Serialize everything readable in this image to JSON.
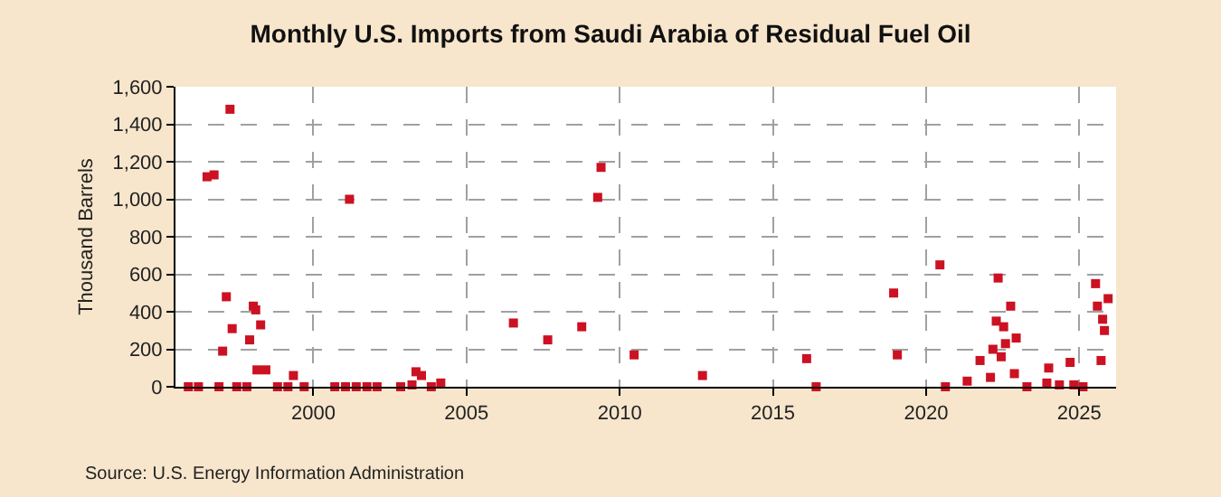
{
  "chart_data": {
    "type": "scatter",
    "title": "Monthly U.S. Imports from Saudi Arabia of Residual Fuel Oil",
    "ylabel": "Thousand Barrels",
    "annotations": [
      "Source: U.S. Energy Information Administration"
    ],
    "marker": "square",
    "grid": true,
    "xlim": [
      1995.5,
      2026.2
    ],
    "xticks": [
      2000,
      2005,
      2010,
      2015,
      2020,
      2025
    ],
    "ylim": [
      0,
      1600
    ],
    "yticks": [
      0,
      200,
      400,
      600,
      800,
      {
        "value": 1000,
        "label": "1,000"
      },
      {
        "value": 1200,
        "label": "1,200"
      },
      {
        "value": 1400,
        "label": "1,400"
      },
      {
        "value": 1600,
        "label": "1,600"
      }
    ],
    "series": [
      {
        "color": "#cc1122",
        "x": [
          1995.92,
          1996.25,
          1996.53,
          1996.76,
          1996.92,
          1997.04,
          1997.16,
          1997.28,
          1997.35,
          1997.5,
          1997.83,
          1997.92,
          1998.04,
          1998.12,
          1998.16,
          1998.28,
          1998.45,
          1998.83,
          1999.17,
          1999.35,
          1999.7,
          2000.7,
          2001.05,
          2001.18,
          2001.4,
          2001.75,
          2002.08,
          2002.85,
          2003.22,
          2003.35,
          2003.53,
          2003.85,
          2004.16,
          2006.53,
          2007.65,
          2008.76,
          2009.28,
          2009.39,
          2010.47,
          2012.7,
          2016.1,
          2016.41,
          2018.94,
          2019.06,
          2020.45,
          2020.63,
          2021.34,
          2021.76,
          2022.1,
          2022.18,
          2022.29,
          2022.35,
          2022.45,
          2022.53,
          2022.59,
          2022.76,
          2022.88,
          2022.94,
          2023.29,
          2023.94,
          2024.0,
          2024.35,
          2024.7,
          2024.82,
          2025.12,
          2025.53,
          2025.59,
          2025.71,
          2025.76,
          2025.82,
          2025.94
        ],
        "values": [
          0,
          0,
          1120,
          1130,
          0,
          190,
          480,
          1480,
          310,
          0,
          0,
          250,
          430,
          410,
          90,
          330,
          90,
          0,
          0,
          60,
          0,
          0,
          0,
          1000,
          0,
          0,
          0,
          0,
          10,
          80,
          60,
          0,
          20,
          340,
          250,
          320,
          1010,
          1170,
          170,
          60,
          150,
          0,
          500,
          170,
          650,
          0,
          30,
          140,
          50,
          200,
          350,
          580,
          160,
          320,
          230,
          430,
          70,
          260,
          0,
          20,
          100,
          10,
          130,
          10,
          0,
          550,
          430,
          140,
          360,
          300,
          470
        ]
      }
    ]
  }
}
